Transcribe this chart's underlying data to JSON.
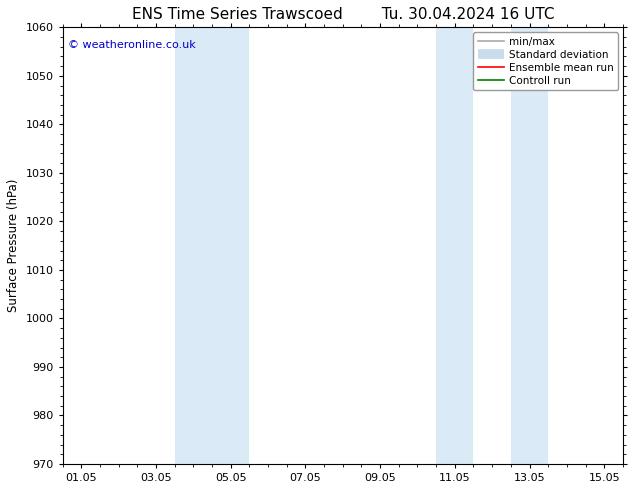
{
  "title_left": "ENS Time Series Trawscoed",
  "title_right": "Tu. 30.04.2024 16 UTC",
  "ylabel": "Surface Pressure (hPa)",
  "ylim": [
    970,
    1060
  ],
  "yticks": [
    970,
    980,
    990,
    1000,
    1010,
    1020,
    1030,
    1040,
    1050,
    1060
  ],
  "xlim_start": 0.0,
  "xlim_end": 14.5,
  "xtick_positions": [
    0.5,
    2.5,
    4.5,
    6.5,
    8.5,
    10.5,
    12.5,
    14.5
  ],
  "xtick_labels": [
    "01.05",
    "03.05",
    "05.05",
    "07.05",
    "09.05",
    "11.05",
    "13.05",
    "15.05"
  ],
  "background_color": "#ffffff",
  "plot_bg_color": "#ffffff",
  "shaded_regions": [
    {
      "x_start": 3.0,
      "x_end": 4.0,
      "color": "#daeaf6"
    },
    {
      "x_start": 4.0,
      "x_end": 5.0,
      "color": "#daeaf6"
    },
    {
      "x_start": 10.0,
      "x_end": 11.0,
      "color": "#daeaf6"
    },
    {
      "x_start": 12.0,
      "x_end": 13.0,
      "color": "#daeaf6"
    }
  ],
  "copyright_text": "© weatheronline.co.uk",
  "copyright_color": "#0000cc",
  "legend_items": [
    {
      "label": "min/max",
      "color": "#aaaaaa",
      "lw": 1.2
    },
    {
      "label": "Standard deviation",
      "color": "#c8dced",
      "lw": 7
    },
    {
      "label": "Ensemble mean run",
      "color": "#ff0000",
      "lw": 1.2
    },
    {
      "label": "Controll run",
      "color": "#008000",
      "lw": 1.2
    }
  ],
  "title_fontsize": 11,
  "tick_fontsize": 8,
  "label_fontsize": 8.5,
  "legend_fontsize": 7.5,
  "copyright_fontsize": 8
}
